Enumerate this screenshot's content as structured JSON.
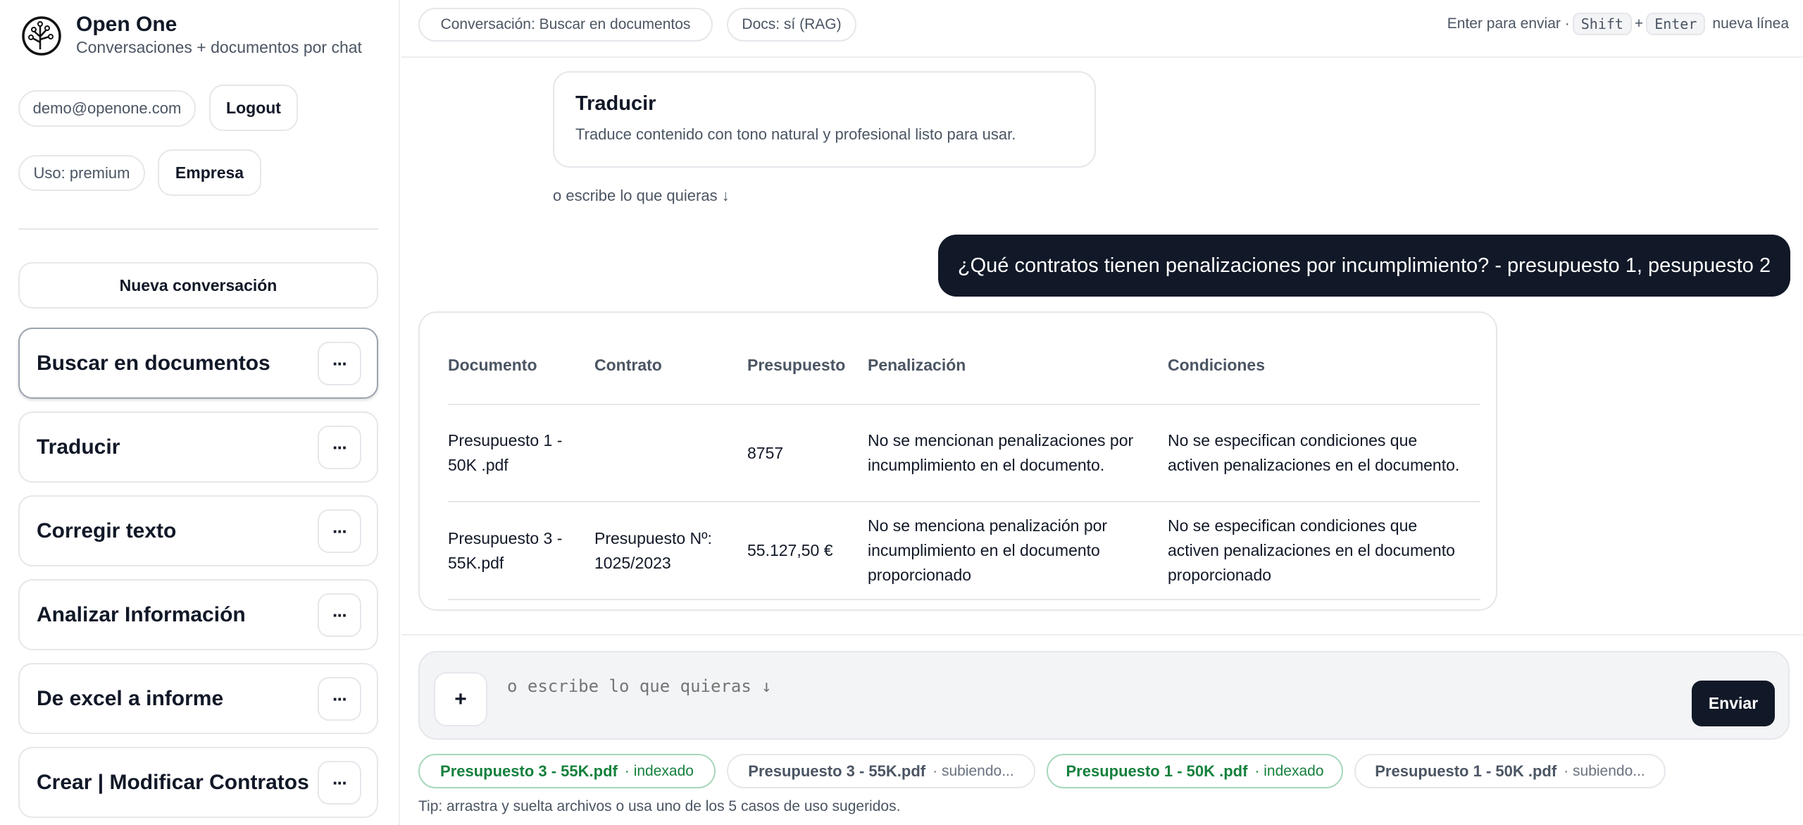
{
  "app": {
    "title": "Open One",
    "subtitle": "Conversaciones + documentos por chat"
  },
  "account": {
    "email": "demo@openone.com",
    "logout": "Logout",
    "usage": "Uso: premium",
    "plan_button": "Empresa"
  },
  "sidebar": {
    "new_conversation": "Nueva conversación",
    "items": [
      {
        "label": "Buscar en documentos",
        "active": true
      },
      {
        "label": "Traducir"
      },
      {
        "label": "Corregir texto"
      },
      {
        "label": "Analizar Información"
      },
      {
        "label": "De excel a informe"
      },
      {
        "label": "Crear | Modificar Contratos"
      }
    ],
    "more_icon": "···"
  },
  "topbar": {
    "conversation_chip": "Conversación: Buscar en documentos",
    "docs_chip": "Docs: sí (RAG)",
    "hint_prefix": "Enter para enviar ·",
    "key_shift": "Shift",
    "plus": "+",
    "key_enter": "Enter",
    "hint_suffix": "nueva línea"
  },
  "suggestion_card": {
    "title": "Traducir",
    "description": "Traduce contenido con tono natural y profesional listo para usar."
  },
  "write_hint": "o escribe lo que quieras ↓",
  "user_message": "¿Qué contratos tienen penalizaciones por incumplimiento? - presupuesto 1, pesupuesto 2",
  "result_table": {
    "headers": [
      "Documento",
      "Contrato",
      "Presupuesto",
      "Penalización",
      "Condiciones"
    ],
    "rows": [
      [
        "Presupuesto 1 - 50K .pdf",
        "",
        "8757",
        "No se mencionan penalizaciones por incumplimiento en el documento.",
        "No se especifican condiciones que activen penalizaciones en el documento."
      ],
      [
        "Presupuesto 3 - 55K.pdf",
        "Presupuesto Nº: 1025/2023",
        "55.127,50 €",
        "No se menciona penalización por incumplimiento en el documento proporcionado",
        "No se especifican condiciones que activen penalizaciones en el documento proporcionado"
      ]
    ]
  },
  "composer": {
    "attach": "+",
    "placeholder": "o escribe lo que quieras ↓",
    "value": "",
    "send": "Enviar"
  },
  "files": [
    {
      "name": "Presupuesto 3 - 55K.pdf",
      "status": "· indexado",
      "state": "indexed"
    },
    {
      "name": "Presupuesto 3 - 55K.pdf",
      "status": "· subiendo...",
      "state": "uploading"
    },
    {
      "name": "Presupuesto 1 - 50K .pdf",
      "status": "· indexado",
      "state": "indexed"
    },
    {
      "name": "Presupuesto 1 - 50K .pdf",
      "status": "· subiendo...",
      "state": "uploading"
    }
  ],
  "tip": "Tip: arrastra y suelta archivos o usa uno de los 5 casos de uso sugeridos.",
  "colors": {
    "accent": "#111827",
    "indexed": "#15803d",
    "border": "#e5e7eb"
  }
}
